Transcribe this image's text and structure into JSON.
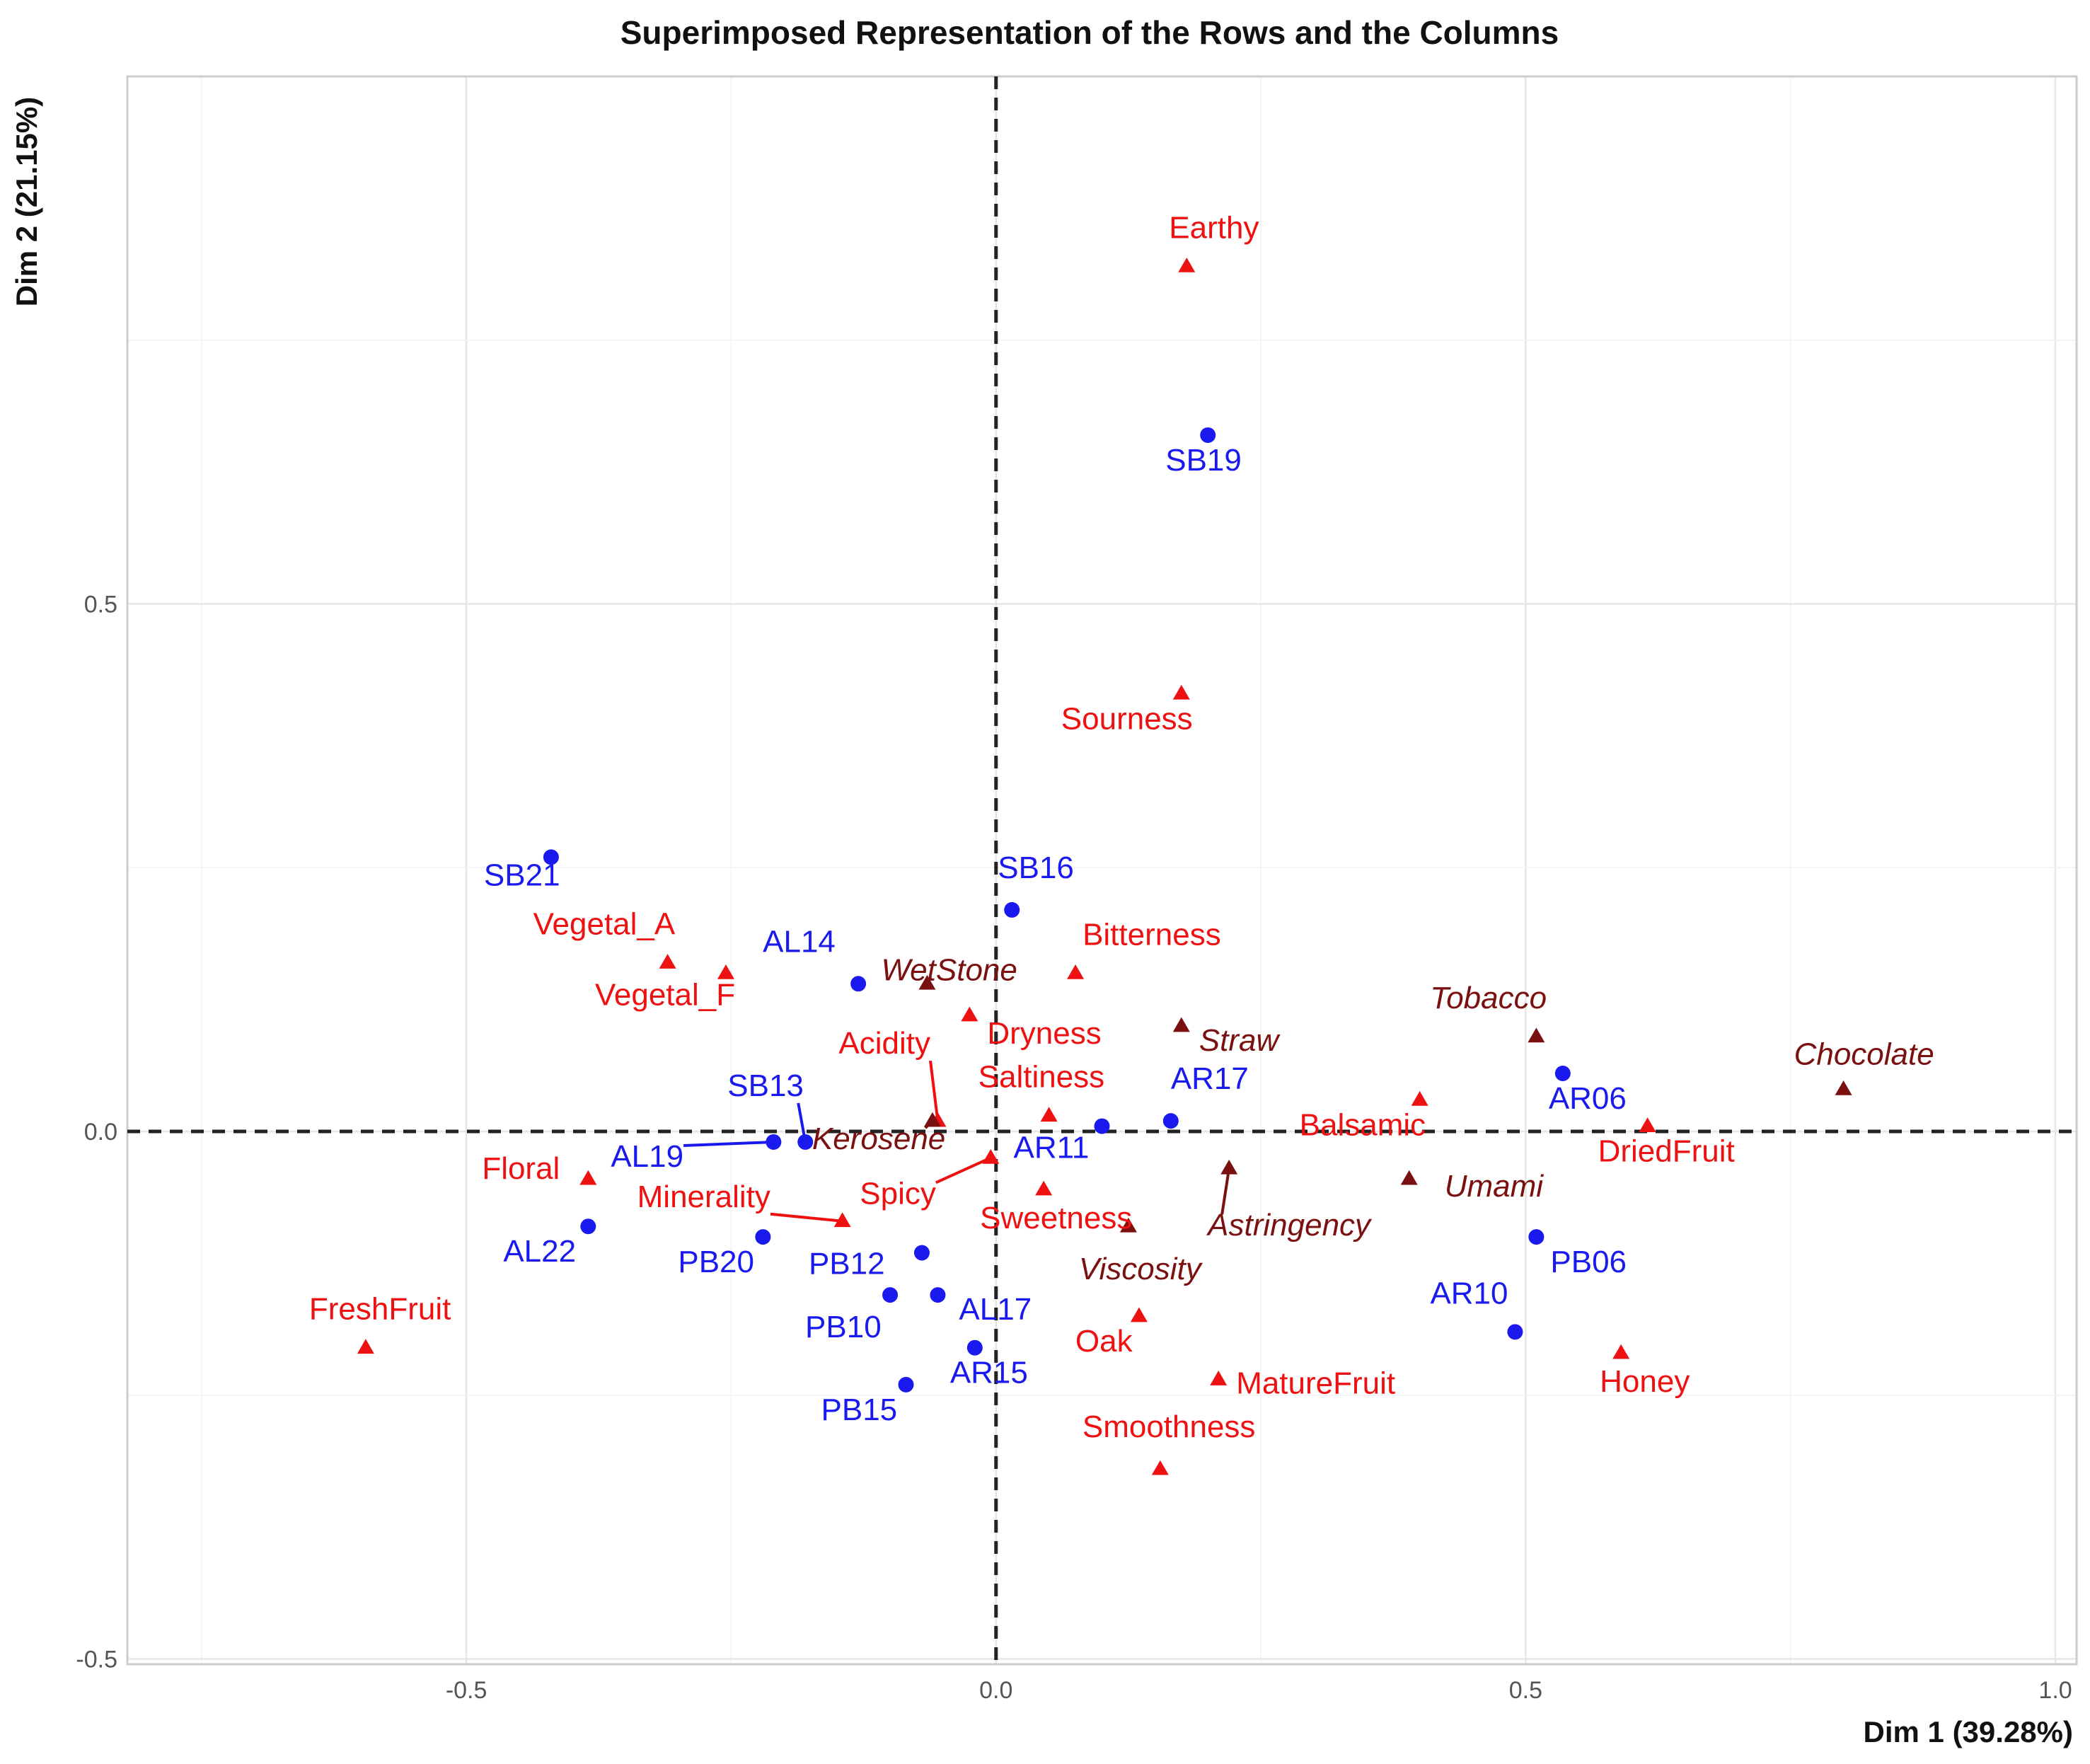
{
  "chart_data": {
    "type": "scatter",
    "title": "Superimposed Representation of the Rows and the Columns",
    "xlabel": "Dim 1 (39.28%)",
    "ylabel": "Dim 2 (21.15%)",
    "xlim": [
      -0.82,
      1.02
    ],
    "ylim": [
      -0.505,
      1.0
    ],
    "x_ticks": [
      -0.5,
      0.0,
      0.5,
      1.0
    ],
    "y_ticks": [
      -0.5,
      0.0,
      0.5
    ],
    "x_tick_labels": [
      "-0.5",
      "0.0",
      "0.5",
      "1.0"
    ],
    "y_tick_labels": [
      "-0.5",
      "0.0",
      "0.5"
    ],
    "grid": true,
    "reference_lines": {
      "x": 0.0,
      "y": 0.0,
      "style": "dashed"
    },
    "colors": {
      "rows": "#1a1aee",
      "active_columns": "#ee1111",
      "supplementary_columns": "#7a1010"
    },
    "series": [
      {
        "marker": "circle",
        "color": "#1a1aee",
        "points": [
          {
            "label": "SB19",
            "x": 0.2,
            "y": 0.66
          },
          {
            "label": "SB21",
            "x": -0.42,
            "y": 0.26
          },
          {
            "label": "SB16",
            "x": 0.015,
            "y": 0.21
          },
          {
            "label": "AL14",
            "x": -0.13,
            "y": 0.14
          },
          {
            "label": "SB13",
            "x": -0.18,
            "y": -0.01
          },
          {
            "label": "AL19",
            "x": -0.21,
            "y": -0.01
          },
          {
            "label": "AR17",
            "x": 0.165,
            "y": 0.01
          },
          {
            "label": "AR11",
            "x": 0.1,
            "y": 0.005
          },
          {
            "label": "AR06",
            "x": 0.535,
            "y": 0.055
          },
          {
            "label": "AL22",
            "x": -0.385,
            "y": -0.09
          },
          {
            "label": "PB20",
            "x": -0.22,
            "y": -0.1
          },
          {
            "label": "PB12",
            "x": -0.07,
            "y": -0.115
          },
          {
            "label": "PB10",
            "x": -0.1,
            "y": -0.155
          },
          {
            "label": "AL17",
            "x": -0.055,
            "y": -0.155
          },
          {
            "label": "AR15",
            "x": -0.02,
            "y": -0.205
          },
          {
            "label": "PB15",
            "x": -0.085,
            "y": -0.24
          },
          {
            "label": "PB06",
            "x": 0.51,
            "y": -0.1
          },
          {
            "label": "AR10",
            "x": 0.49,
            "y": -0.19
          }
        ]
      },
      {
        "marker": "triangle",
        "color": "#ee1111",
        "points": [
          {
            "label": "Earthy",
            "x": 0.18,
            "y": 0.82
          },
          {
            "label": "Sourness",
            "x": 0.175,
            "y": 0.415
          },
          {
            "label": "Vegetal_A",
            "x": -0.31,
            "y": 0.16
          },
          {
            "label": "Vegetal_F",
            "x": -0.255,
            "y": 0.15
          },
          {
            "label": "Bitterness",
            "x": 0.075,
            "y": 0.15
          },
          {
            "label": "Dryness",
            "x": -0.025,
            "y": 0.11
          },
          {
            "label": "Acidity",
            "x": -0.055,
            "y": 0.01
          },
          {
            "label": "Saltiness",
            "x": 0.05,
            "y": 0.015
          },
          {
            "label": "Balsamic",
            "x": 0.4,
            "y": 0.03
          },
          {
            "label": "DriedFruit",
            "x": 0.615,
            "y": 0.005
          },
          {
            "label": "Floral",
            "x": -0.385,
            "y": -0.045
          },
          {
            "label": "Spicy",
            "x": -0.005,
            "y": -0.025
          },
          {
            "label": "Minerality",
            "x": -0.145,
            "y": -0.085
          },
          {
            "label": "Sweetness",
            "x": 0.045,
            "y": -0.055
          },
          {
            "label": "FreshFruit",
            "x": -0.595,
            "y": -0.205
          },
          {
            "label": "Oak",
            "x": 0.135,
            "y": -0.175
          },
          {
            "label": "MatureFruit",
            "x": 0.21,
            "y": -0.235
          },
          {
            "label": "Honey",
            "x": 0.59,
            "y": -0.21
          },
          {
            "label": "Smoothness",
            "x": 0.155,
            "y": -0.32
          }
        ]
      },
      {
        "marker": "triangle",
        "color": "#7a1010",
        "points": [
          {
            "label": "WetStone",
            "x": -0.065,
            "y": 0.14
          },
          {
            "label": "Straw",
            "x": 0.175,
            "y": 0.1
          },
          {
            "label": "Tobacco",
            "x": 0.51,
            "y": 0.09
          },
          {
            "label": "Chocolate",
            "x": 0.8,
            "y": 0.04
          },
          {
            "label": "Kerosene",
            "x": -0.06,
            "y": 0.01
          },
          {
            "label": "Astringency",
            "x": 0.22,
            "y": -0.035
          },
          {
            "label": "Umami",
            "x": 0.39,
            "y": -0.045
          },
          {
            "label": "Viscosity",
            "x": 0.125,
            "y": -0.09
          }
        ]
      }
    ]
  }
}
